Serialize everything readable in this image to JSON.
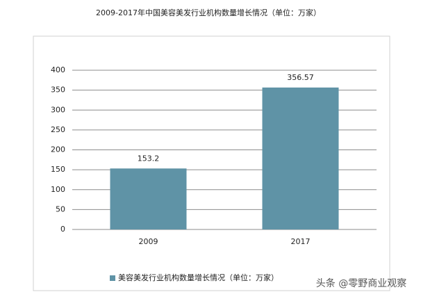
{
  "chart_data": {
    "type": "bar",
    "title": "2009-2017年中国美容美发行业机构数量增长情况（单位：万家）",
    "categories": [
      "2009",
      "2017"
    ],
    "series": [
      {
        "name": "美容美发行业机构数量增长情况（单位：万家）",
        "color": "#5f93a6",
        "values": [
          153.2,
          356.57
        ]
      }
    ],
    "ylim": [
      0,
      400
    ],
    "yticks": [
      0,
      50,
      100,
      150,
      200,
      250,
      300,
      350,
      400
    ],
    "grid": true,
    "legend": "bottom"
  },
  "watermark": "头条 @零野商业观察"
}
